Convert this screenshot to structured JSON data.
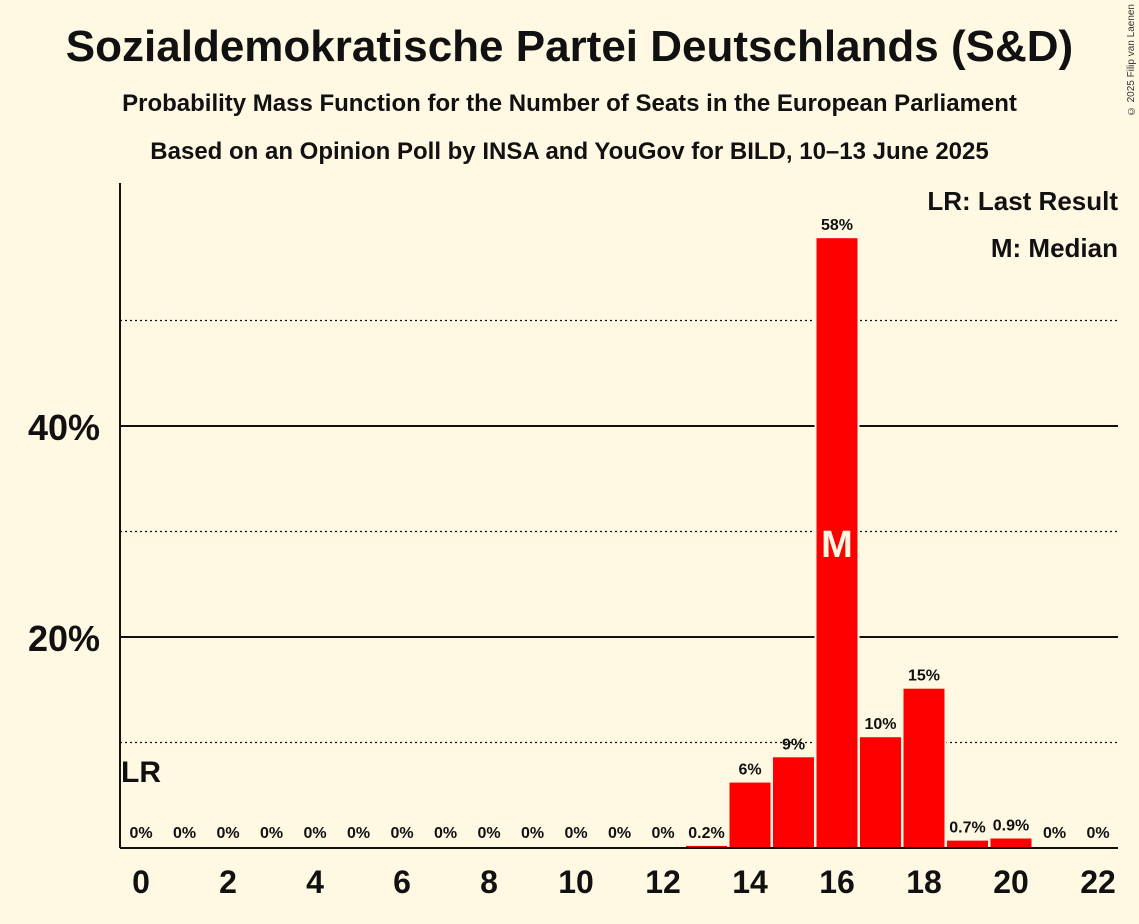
{
  "title": "Sozialdemokratische Partei Deutschlands (S&D)",
  "subtitle": "Probability Mass Function for the Number of Seats in the European Parliament",
  "subtitle2": "Based on an Opinion Poll by INSA and YouGov for BILD, 10–13 June 2025",
  "copyright": "© 2025 Filip van Laenen",
  "legend": {
    "last_result": "LR: Last Result",
    "median": "M: Median"
  },
  "colors": {
    "bar": "#FF0000",
    "background": "#FFF9E3",
    "text": "#111111"
  },
  "chart_data": {
    "type": "bar",
    "x": [
      0,
      1,
      2,
      3,
      4,
      5,
      6,
      7,
      8,
      9,
      10,
      11,
      12,
      13,
      14,
      15,
      16,
      17,
      18,
      19,
      20,
      21,
      22
    ],
    "values": [
      0,
      0,
      0,
      0,
      0,
      0,
      0,
      0,
      0,
      0,
      0,
      0,
      0,
      0.2,
      6.2,
      8.6,
      57.8,
      10.5,
      15.1,
      0.7,
      0.9,
      0,
      0
    ],
    "value_labels": [
      "0%",
      "0%",
      "0%",
      "0%",
      "0%",
      "0%",
      "0%",
      "0%",
      "0%",
      "0%",
      "0%",
      "0%",
      "0%",
      "0.2%",
      "6%",
      "9%",
      "58%",
      "10%",
      "15%",
      "0.7%",
      "0.9%",
      "0%",
      "0%"
    ],
    "x_tick_labels": [
      "0",
      "2",
      "4",
      "6",
      "8",
      "10",
      "12",
      "14",
      "16",
      "18",
      "20",
      "22"
    ],
    "x_tick_values": [
      0,
      2,
      4,
      6,
      8,
      10,
      12,
      14,
      16,
      18,
      20,
      22
    ],
    "y_tick_labels": [
      "20%",
      "40%"
    ],
    "y_tick_values": [
      20,
      40
    ],
    "y_gridlines_major": [
      20,
      40
    ],
    "y_gridlines_minor": [
      10,
      30,
      50
    ],
    "ylim": [
      0,
      63
    ],
    "last_result_seat": 0,
    "last_result_label": "LR",
    "median_seat": 16,
    "median_label": "M",
    "legend_position": "top-right",
    "xlabel": "",
    "ylabel": ""
  }
}
